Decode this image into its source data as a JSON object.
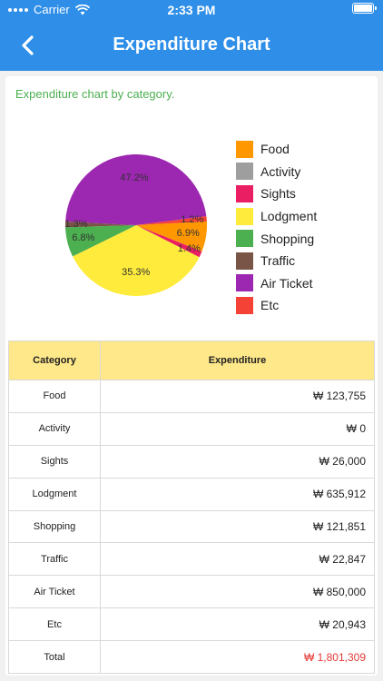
{
  "status_bar": {
    "carrier": "Carrier",
    "time": "2:33 PM"
  },
  "header": {
    "title": "Expenditure Chart"
  },
  "subtitle": "Expenditure chart by category.",
  "chart_data": {
    "type": "pie",
    "slices": [
      {
        "name": "Food",
        "percent": 6.9,
        "color": "#ff9800"
      },
      {
        "name": "Activity",
        "percent": 0.0,
        "color": "#9e9e9e"
      },
      {
        "name": "Sights",
        "percent": 1.4,
        "color": "#e91e63"
      },
      {
        "name": "Lodgment",
        "percent": 35.3,
        "color": "#ffeb3b"
      },
      {
        "name": "Shopping",
        "percent": 6.8,
        "color": "#4caf50"
      },
      {
        "name": "Traffic",
        "percent": 1.3,
        "color": "#795548"
      },
      {
        "name": "Air Ticket",
        "percent": 47.2,
        "color": "#9c27b0"
      },
      {
        "name": "Etc",
        "percent": 1.2,
        "color": "#f44336"
      }
    ],
    "labels": [
      {
        "text": "6.9%"
      },
      {
        "text": "1.4%"
      },
      {
        "text": "35.3%"
      },
      {
        "text": "6.8%"
      },
      {
        "text": "1.3%"
      },
      {
        "text": "47.2%"
      },
      {
        "text": "1.2%"
      }
    ],
    "legend_placement": "right"
  },
  "table": {
    "headers": {
      "category": "Category",
      "expenditure": "Expenditure"
    },
    "rows": [
      {
        "category": "Food",
        "amount": "₩ 123,755"
      },
      {
        "category": "Activity",
        "amount": "₩ 0"
      },
      {
        "category": "Sights",
        "amount": "₩ 26,000"
      },
      {
        "category": "Lodgment",
        "amount": "₩ 635,912"
      },
      {
        "category": "Shopping",
        "amount": "₩ 121,851"
      },
      {
        "category": "Traffic",
        "amount": "₩ 22,847"
      },
      {
        "category": "Air Ticket",
        "amount": "₩ 850,000"
      },
      {
        "category": "Etc",
        "amount": "₩ 20,943"
      }
    ],
    "total": {
      "category": "Total",
      "amount": "₩ 1,801,309"
    }
  }
}
